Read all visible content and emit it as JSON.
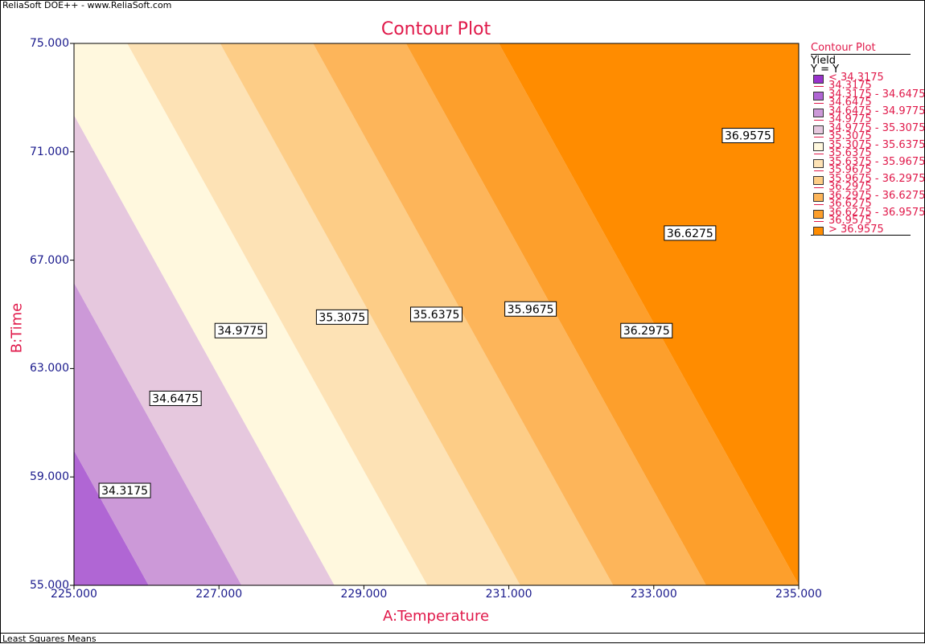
{
  "header": {
    "app_title": "ReliaSoft DOE++ - www.ReliaSoft.com"
  },
  "footer": {
    "status": "Least Squares Means"
  },
  "chart_data": {
    "type": "contour",
    "title": "Contour Plot",
    "xlabel": "A:Temperature",
    "ylabel": "B:Time",
    "xlim": [
      225,
      235
    ],
    "ylim": [
      55,
      75
    ],
    "x_ticks": [
      "225.000",
      "227.000",
      "229.000",
      "231.000",
      "233.000",
      "235.000"
    ],
    "y_ticks": [
      "55.000",
      "59.000",
      "63.000",
      "67.000",
      "71.000",
      "75.000"
    ],
    "levels": [
      34.3175,
      34.6475,
      34.9775,
      35.3075,
      35.6375,
      35.9675,
      36.2975,
      36.6275,
      36.9575
    ],
    "band_colors": [
      "#9933cc",
      "#b066d4",
      "#cc99d8",
      "#e6c8de",
      "#fff8de",
      "#fde2b5",
      "#fdcd87",
      "#fdb55a",
      "#fd9f2c",
      "#ff8c00"
    ],
    "contour_labels": [
      {
        "text": "34.3175",
        "x": 225.7,
        "y": 58.5
      },
      {
        "text": "34.6475",
        "x": 226.4,
        "y": 61.9
      },
      {
        "text": "34.9775",
        "x": 227.3,
        "y": 64.4
      },
      {
        "text": "35.3075",
        "x": 228.7,
        "y": 64.9
      },
      {
        "text": "35.6375",
        "x": 230.0,
        "y": 65.0
      },
      {
        "text": "35.9675",
        "x": 231.3,
        "y": 65.2
      },
      {
        "text": "36.2975",
        "x": 232.9,
        "y": 64.4
      },
      {
        "text": "36.6275",
        "x": 233.5,
        "y": 68.0
      },
      {
        "text": "36.9575",
        "x": 234.3,
        "y": 71.6
      }
    ],
    "legend": {
      "title": "Contour Plot",
      "variable": "Yield",
      "equation": "Y = Y",
      "placement": "right",
      "entries": [
        "< 34.3175",
        "34.3175 - 34.6475",
        "34.6475 - 34.9775",
        "34.9775 - 35.3075",
        "35.3075 - 35.6375",
        "35.6375 - 35.9675",
        "35.9675 - 36.2975",
        "36.2975 - 36.6275",
        "36.6275 - 36.9575",
        "> 36.9575"
      ],
      "boundaries": [
        "34.3175",
        "34.6475",
        "34.9775",
        "35.3075",
        "35.6375",
        "35.9675",
        "36.2975",
        "36.6275",
        "36.9575"
      ]
    }
  }
}
